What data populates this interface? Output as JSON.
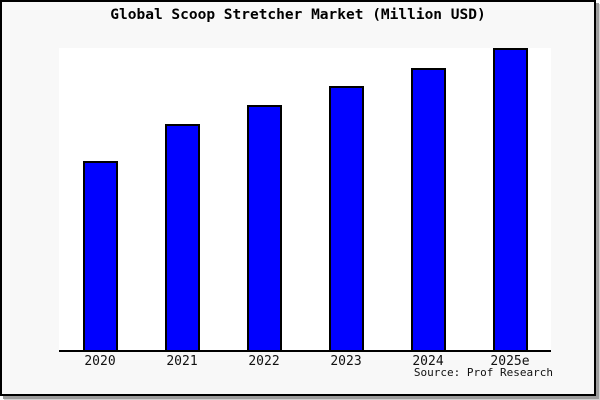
{
  "title": "Global Scoop Stretcher Market (Million USD)",
  "source_note": "Source: Prof Research",
  "colors": {
    "bar_fill": "#0000ff",
    "bar_border": "#000000",
    "plot_bg": "#ffffff",
    "page_bg": "#f8f8f8",
    "axis": "#000000",
    "card_border": "#000000",
    "card_shadow": "#9c9c9c"
  },
  "chart_data": {
    "type": "bar",
    "title": "Global Scoop Stretcher Market (Million USD)",
    "categories": [
      "2020",
      "2021",
      "2022",
      "2023",
      "2024",
      "2025e"
    ],
    "values": [
      62.6,
      74.8,
      81.1,
      87.4,
      93.4,
      100.0
    ],
    "value_note": "y-axis unlabeled in image; values are bar heights as % of tallest (2025e) bar",
    "xlabel": "",
    "ylabel": "",
    "ylim": [
      0,
      100
    ],
    "grid": false,
    "legend": false,
    "bar_color": "#0000ff",
    "source_note": "Source: Prof Research"
  }
}
